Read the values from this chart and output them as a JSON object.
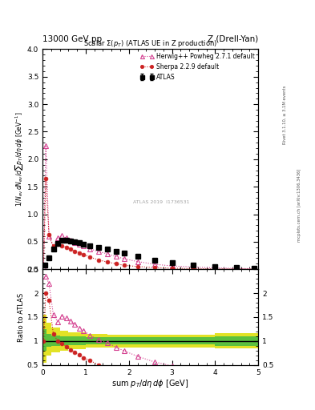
{
  "title_top_left": "13000 GeV pp",
  "title_top_right": "Z (Drell-Yan)",
  "plot_title": "Scalar Σ(p_T) (ATLAS UE in Z production)",
  "xlabel": "sum p_T/dη dϕ [GeV]",
  "ylabel_main": "1/N_ev dN_ev/dsum p_T/dη dϕ [GeV]",
  "ylabel_ratio": "Ratio to ATLAS",
  "watermark": "ATLAS 2019  I1736531",
  "right_label_top": "Rivet 3.1.10, ≥ 3.1M events",
  "right_label_bottom": "mcplots.cern.ch [arXiv:1306.3436]",
  "xlim": [
    0,
    5.0
  ],
  "ylim_main": [
    0,
    4
  ],
  "ylim_ratio": [
    0.5,
    2.5
  ],
  "atlas_x": [
    0.05,
    0.15,
    0.25,
    0.35,
    0.45,
    0.55,
    0.65,
    0.75,
    0.85,
    0.95,
    1.1,
    1.3,
    1.5,
    1.7,
    1.9,
    2.2,
    2.6,
    3.0,
    3.5,
    4.0,
    4.5,
    4.9
  ],
  "atlas_y": [
    0.07,
    0.21,
    0.37,
    0.47,
    0.52,
    0.52,
    0.51,
    0.5,
    0.48,
    0.46,
    0.42,
    0.39,
    0.37,
    0.33,
    0.3,
    0.23,
    0.17,
    0.12,
    0.08,
    0.05,
    0.03,
    0.02
  ],
  "atlas_yerr": [
    0.01,
    0.01,
    0.01,
    0.01,
    0.01,
    0.01,
    0.01,
    0.01,
    0.01,
    0.01,
    0.01,
    0.01,
    0.01,
    0.01,
    0.01,
    0.01,
    0.01,
    0.01,
    0.005,
    0.005,
    0.005,
    0.005
  ],
  "herwig_x": [
    0.025,
    0.075,
    0.15,
    0.25,
    0.35,
    0.45,
    0.55,
    0.65,
    0.75,
    0.85,
    0.95,
    1.1,
    1.3,
    1.5,
    1.7,
    1.9,
    2.2,
    2.6,
    3.0,
    3.5,
    4.0,
    4.5,
    4.9
  ],
  "herwig_y": [
    0.04,
    2.25,
    0.6,
    0.4,
    0.57,
    0.61,
    0.57,
    0.53,
    0.49,
    0.45,
    0.42,
    0.37,
    0.32,
    0.28,
    0.23,
    0.19,
    0.14,
    0.09,
    0.06,
    0.04,
    0.025,
    0.015,
    0.01
  ],
  "sherpa_x": [
    0.025,
    0.075,
    0.15,
    0.25,
    0.35,
    0.45,
    0.55,
    0.65,
    0.75,
    0.85,
    0.95,
    1.1,
    1.3,
    1.5,
    1.7,
    1.9,
    2.2,
    2.6,
    3.0,
    3.5,
    4.0,
    4.5,
    4.9
  ],
  "sherpa_y": [
    0.07,
    1.65,
    0.63,
    0.42,
    0.45,
    0.43,
    0.4,
    0.37,
    0.33,
    0.3,
    0.27,
    0.22,
    0.17,
    0.13,
    0.1,
    0.07,
    0.05,
    0.03,
    0.02,
    0.01,
    0.006,
    0.004,
    0.002
  ],
  "herwig_ratio_x": [
    0.075,
    0.15,
    0.25,
    0.35,
    0.45,
    0.55,
    0.65,
    0.75,
    0.85,
    0.95,
    1.1,
    1.3,
    1.5,
    1.7,
    1.9,
    2.2,
    2.6,
    3.0
  ],
  "herwig_ratio_y": [
    2.35,
    2.2,
    1.55,
    1.4,
    1.52,
    1.48,
    1.42,
    1.35,
    1.27,
    1.22,
    1.12,
    1.03,
    0.96,
    0.87,
    0.79,
    0.68,
    0.56,
    0.48
  ],
  "sherpa_ratio_x": [
    0.025,
    0.075,
    0.15,
    0.25,
    0.35,
    0.45,
    0.55,
    0.65,
    0.75,
    0.85,
    0.95,
    1.1,
    1.3,
    1.5,
    1.7,
    1.9,
    2.2,
    2.6
  ],
  "sherpa_ratio_y": [
    1.0,
    2.0,
    1.85,
    1.15,
    1.0,
    0.95,
    0.88,
    0.82,
    0.76,
    0.71,
    0.65,
    0.59,
    0.5,
    0.42,
    0.35,
    0.27,
    0.2,
    0.14
  ],
  "green_band_edges": [
    0.0,
    0.1,
    0.2,
    0.4,
    0.6,
    1.0,
    1.5,
    2.0,
    3.0,
    4.0,
    5.0
  ],
  "green_band_low": [
    0.8,
    0.88,
    0.9,
    0.91,
    0.92,
    0.93,
    0.93,
    0.93,
    0.93,
    0.9,
    0.9
  ],
  "green_band_high": [
    1.25,
    1.15,
    1.12,
    1.1,
    1.09,
    1.08,
    1.08,
    1.08,
    1.08,
    1.1,
    1.1
  ],
  "yellow_band_edges": [
    0.0,
    0.1,
    0.2,
    0.4,
    0.6,
    1.0,
    1.5,
    2.0,
    3.0,
    4.0,
    5.0
  ],
  "yellow_band_low": [
    0.55,
    0.7,
    0.76,
    0.8,
    0.83,
    0.86,
    0.87,
    0.87,
    0.87,
    0.84,
    0.82
  ],
  "yellow_band_high": [
    1.55,
    1.38,
    1.28,
    1.22,
    1.18,
    1.14,
    1.13,
    1.13,
    1.13,
    1.16,
    1.2
  ],
  "color_atlas": "black",
  "color_herwig": "#d44090",
  "color_sherpa": "#cc2222",
  "color_green": "#44bb44",
  "color_yellow": "#dddd00",
  "herwig_label": "Herwig++ Powheg 2.7.1 default",
  "sherpa_label": "Sherpa 2.2.9 default",
  "atlas_label": "ATLAS"
}
